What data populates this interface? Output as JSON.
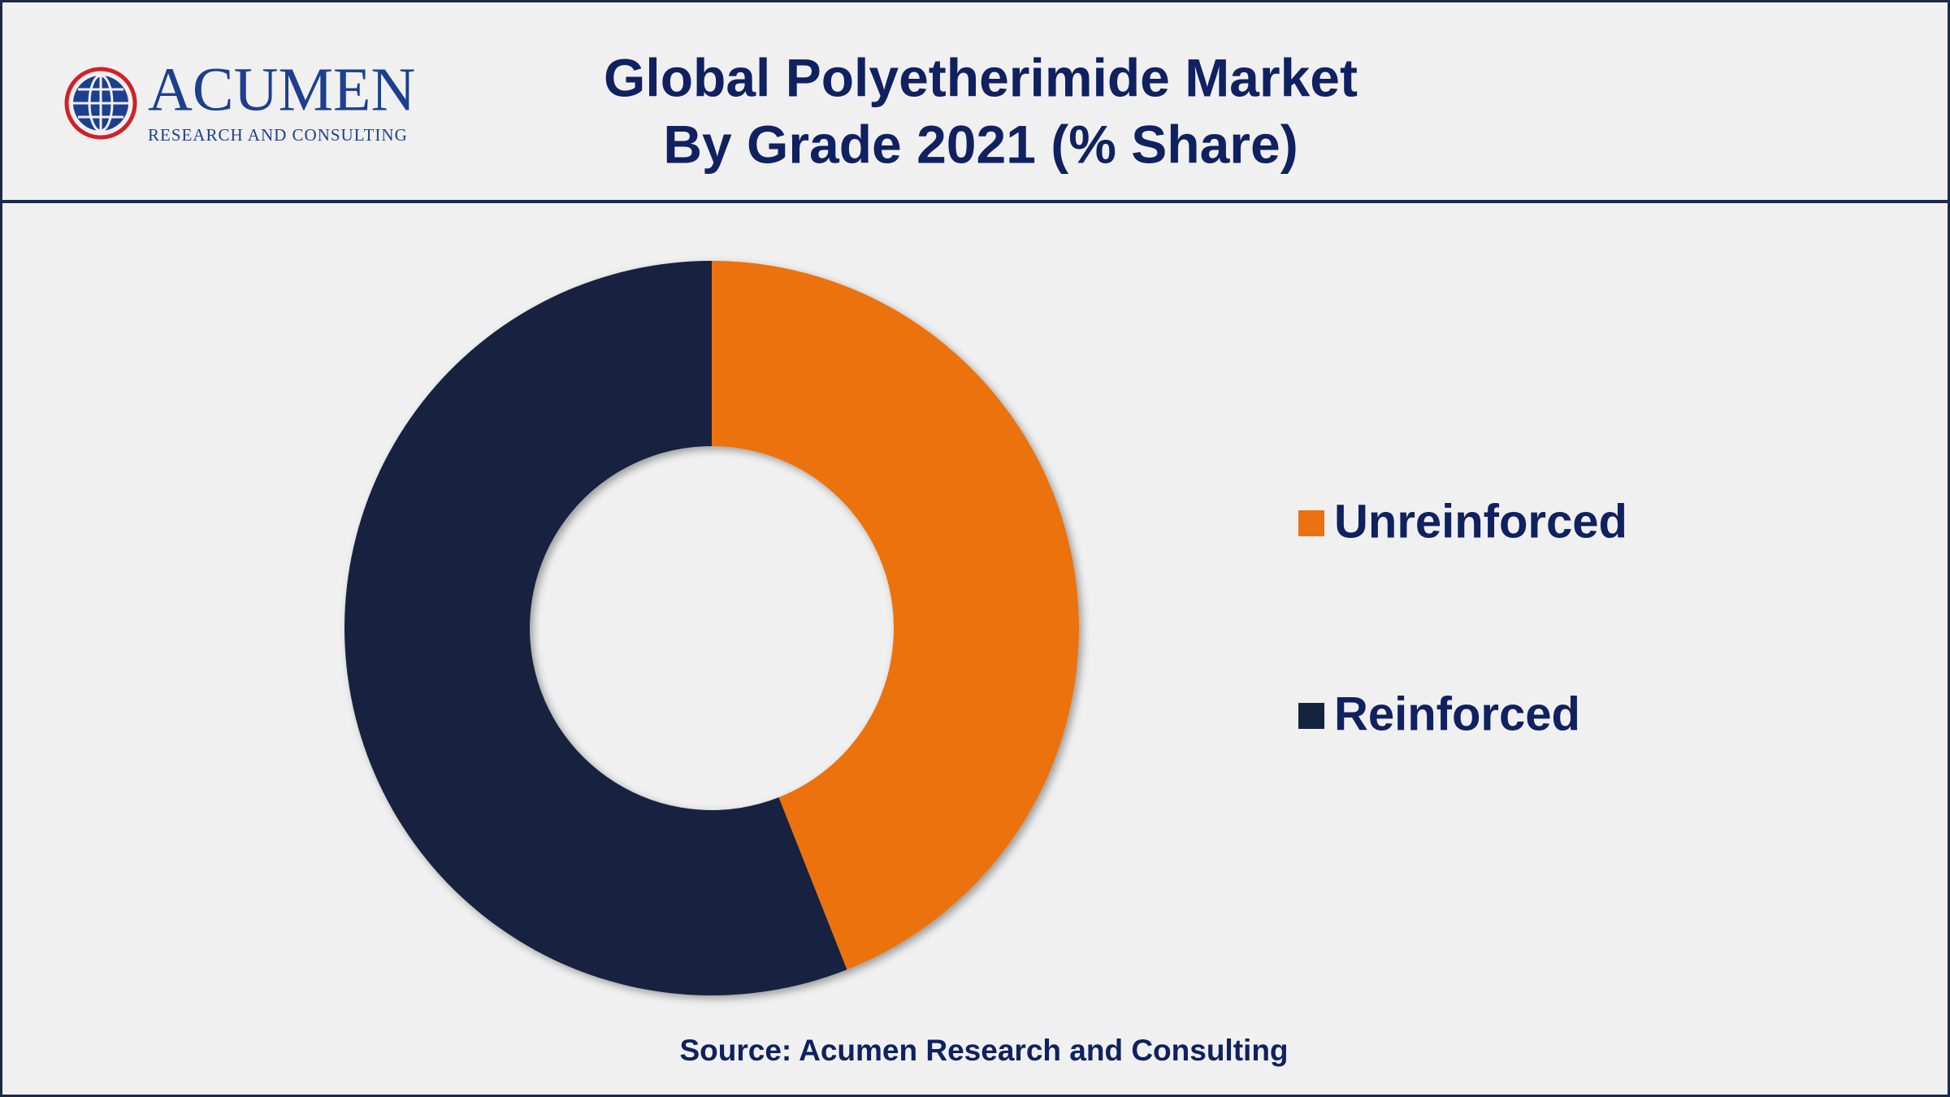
{
  "logo": {
    "name": "ACUMEN",
    "tagline": "RESEARCH AND CONSULTING"
  },
  "chart_data": {
    "type": "donut",
    "title": [
      "Global Polyetherimide Market",
      "By Grade 2021 (% Share)"
    ],
    "categories": [
      "Unreinforced",
      "Reinforced"
    ],
    "values": [
      44,
      56
    ],
    "colors": [
      "#ec7211",
      "#14243f"
    ],
    "legend": "right",
    "source": "Source: Acumen Research and Consulting"
  }
}
